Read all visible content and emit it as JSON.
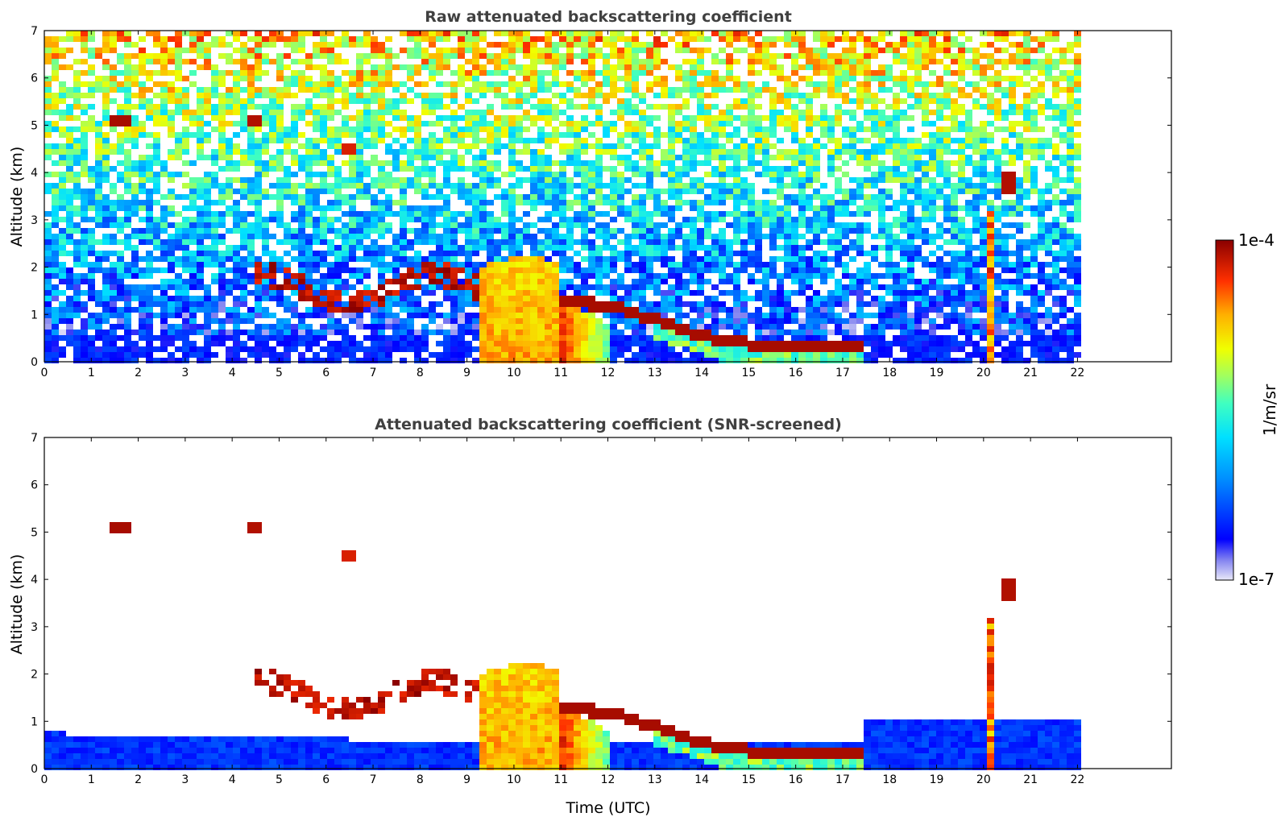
{
  "chart_data": [
    {
      "type": "heatmap",
      "title": "Raw attenuated backscattering coefficient",
      "xlabel": "",
      "ylabel": "Altitude (km)",
      "xlim": [
        0,
        24
      ],
      "ylim": [
        0,
        7
      ],
      "x_ticks": [
        "0",
        "1",
        "2",
        "3",
        "4",
        "5",
        "6",
        "7",
        "8",
        "9",
        "10",
        "11",
        "12",
        "13",
        "14",
        "15",
        "16",
        "17",
        "18",
        "19",
        "20",
        "21",
        "22"
      ],
      "y_ticks": [
        "0",
        "1",
        "2",
        "3",
        "4",
        "5",
        "6",
        "7"
      ],
      "data_end_time": 22.15,
      "features": [
        {
          "name": "low-level signal",
          "t": [
            0,
            22.15
          ],
          "alt": [
            0,
            0.6
          ],
          "level": "low"
        },
        {
          "name": "aerosol layer",
          "t": [
            4.5,
            9.2
          ],
          "alt": [
            1.4,
            2.1
          ],
          "level": "high"
        },
        {
          "name": "dense layer",
          "t": [
            9.2,
            11.0
          ],
          "alt": [
            0,
            2.4
          ],
          "level": "medium-high"
        },
        {
          "name": "descending layer",
          "t": [
            11.0,
            17.5
          ],
          "alt": [
            1.3,
            0.25
          ],
          "level": "high"
        },
        {
          "name": "elevated cloud",
          "t": [
            1.4,
            1.9
          ],
          "alt": [
            5.0,
            5.2
          ],
          "level": "high"
        },
        {
          "name": "elevated cloud",
          "t": [
            4.3,
            4.7
          ],
          "alt": [
            5.05,
            5.2
          ],
          "level": "high"
        },
        {
          "name": "plume",
          "t": [
            20.1,
            20.7
          ],
          "alt": [
            0,
            4.0
          ],
          "level": "high"
        }
      ]
    },
    {
      "type": "heatmap",
      "title": "Attenuated backscattering coefficient (SNR-screened)",
      "xlabel": "Time (UTC)",
      "ylabel": "Altitude (km)",
      "xlim": [
        0,
        24
      ],
      "ylim": [
        0,
        7
      ],
      "x_ticks": [
        "0",
        "1",
        "2",
        "3",
        "4",
        "5",
        "6",
        "7",
        "8",
        "9",
        "10",
        "11",
        "12",
        "13",
        "14",
        "15",
        "16",
        "17",
        "18",
        "19",
        "20",
        "21",
        "22"
      ],
      "y_ticks": [
        "0",
        "1",
        "2",
        "3",
        "4",
        "5",
        "6",
        "7"
      ],
      "data_end_time": 22.15
    }
  ],
  "colorbar": {
    "max_label": "1e-4",
    "min_label": "1e-7",
    "unit_label": "1/m/sr",
    "colors": [
      "#e8e8f8",
      "#a8a8f0",
      "#6060f0",
      "#0000ff",
      "#0050ff",
      "#00a0ff",
      "#00e0ff",
      "#40ffc0",
      "#a0ff60",
      "#e8ff00",
      "#ffd000",
      "#ff9000",
      "#ff4000",
      "#e00000",
      "#900000"
    ]
  }
}
